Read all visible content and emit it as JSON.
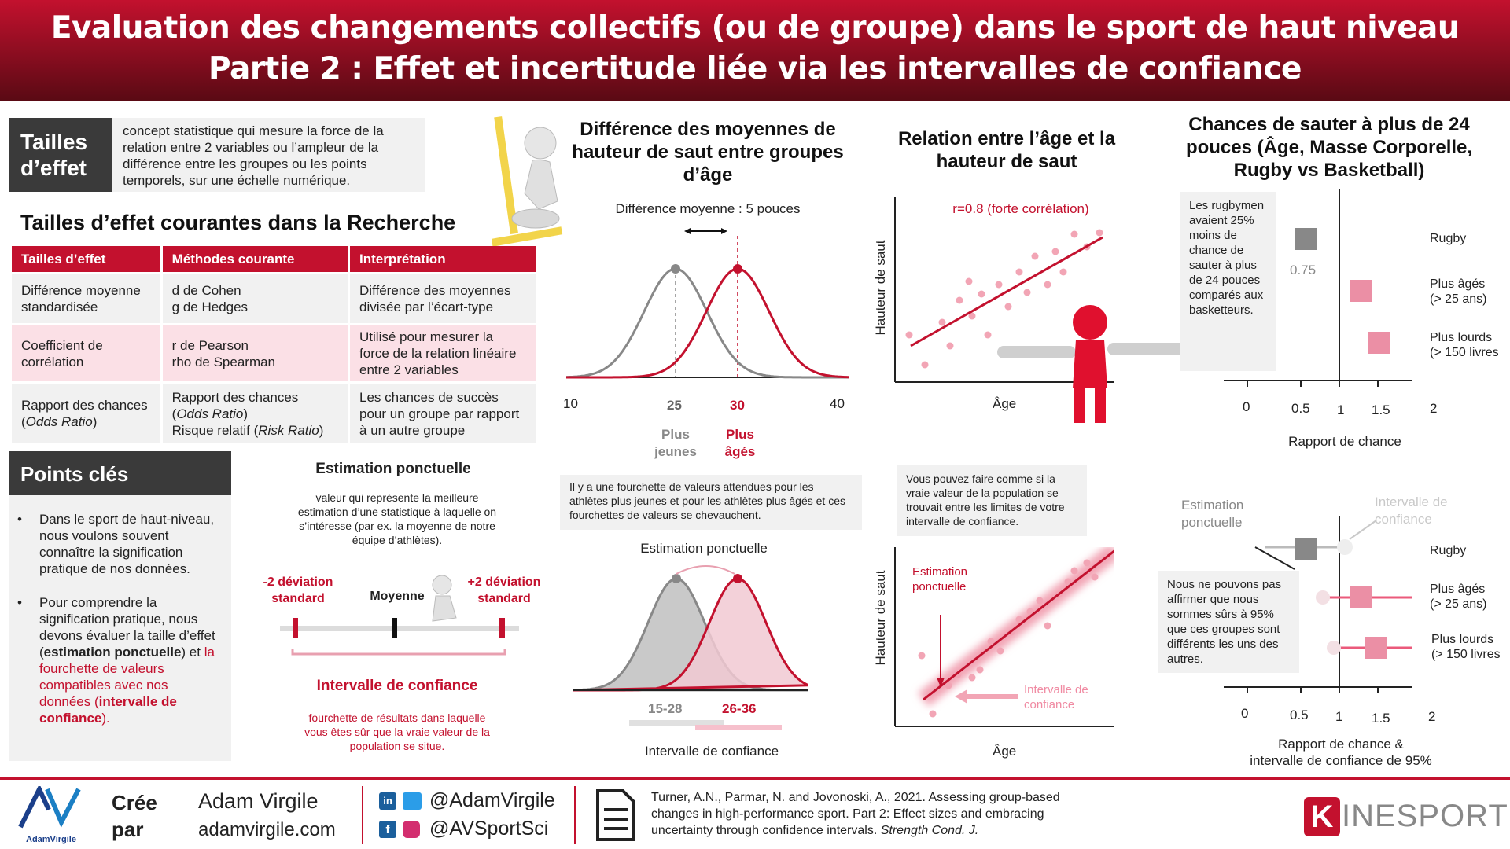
{
  "header": {
    "title_line1": "Evaluation des changements collectifs (ou de groupe) dans le sport de haut niveau",
    "title_line2": "Partie 2 : Effet et incertitude liée via les intervalles de confiance"
  },
  "effect_sizes": {
    "tag": "Tailles d’effet",
    "definition": "concept statistique qui mesure la force de la relation entre 2 variables ou l’ampleur de la différence entre les groupes ou les points temporels, sur une échelle numérique.",
    "table_title": "Tailles d’effet courantes dans la Recherche",
    "columns": [
      "Tailles d’effet",
      "Méthodes courante",
      "Interprétation"
    ],
    "rows": [
      {
        "size": "Différence moyenne standardisée",
        "methods_line1": "d de Cohen",
        "methods_line2": "g de Hedges",
        "interpretation": "Différence des moyennes divisée par l’écart-type"
      },
      {
        "size": "Coefficient de corrélation",
        "methods_line1": "r de Pearson",
        "methods_line2": "rho de Spearman",
        "interpretation": "Utilisé pour mesurer la force de la relation linéaire entre 2 variables"
      },
      {
        "size_prefix": "Rapport des chances (",
        "size_em": "Odds Ratio",
        "size_suffix": ")",
        "methods_line1": "Rapport des chances",
        "methods_line2_pre": "(",
        "methods_line2_em": "Odds Ratio",
        "methods_line2_post": ")",
        "methods_line3_pre": "Risque relatif (",
        "methods_line3_em": "Risk Ratio",
        "methods_line3_post": ")",
        "interpretation": "Les chances de succès pour un groupe par rapport à un autre groupe"
      }
    ]
  },
  "key_points": {
    "title": "Points clés",
    "point1": "Dans le sport de haut-niveau, nous voulons souvent connaître la signification pratique de nos données.",
    "point2_a": "Pour comprendre la signification pratique, nous devons évaluer la taille d’effet (",
    "point2_b": "estimation ponctuelle",
    "point2_c": ") et ",
    "point2_d": "la fourchette de valeurs compatibles avec nos données (",
    "point2_e": "intervalle de confiance",
    "point2_f": ")."
  },
  "point_estimate": {
    "title": "Estimation ponctuelle",
    "description": "valeur qui représente la meilleure estimation d’une statistique à laquelle on s’intéresse (par ex. la moyenne de notre équipe d’athlètes).",
    "minus_label": "-2 déviation standard",
    "mean_label": "Moyenne",
    "plus_label": "+2 déviation standard",
    "ci_title": "Intervalle de confiance",
    "ci_desc": "fourchette de résultats dans laquelle vous êtes sûr que la vraie valeur de la population se situe."
  },
  "mean_diff": {
    "title": "Différence des moyennes de hauteur de saut entre groupes d’âge",
    "diff_label": "Différence moyenne : 5 pouces",
    "ticks": [
      "10",
      "25",
      "30",
      "40"
    ],
    "young_label": "Plus jeunes",
    "old_label": "Plus âgés",
    "overlap_note": "Il y a une fourchette de valeurs attendues pour les athlètes plus jeunes et pour les athlètes plus âgés et ces fourchettes de valeurs se chevauchent.",
    "pe_label": "Estimation ponctuelle",
    "range_young": "15-28",
    "range_old": "26-36",
    "ci_label": "Intervalle de confiance"
  },
  "correlation": {
    "title": "Relation entre l’âge et la hauteur de saut",
    "r_label": "r=0.8 (forte corrélation)",
    "x_label": "Âge",
    "y_label": "Hauteur de saut",
    "note": "Vous pouvez faire comme si la vraie valeur de la population se trouvait entre les limites de votre intervalle de confiance.",
    "pe_label": "Estimation ponctuelle",
    "ci_label": "Intervalle de confiance",
    "x_label2": "Âge",
    "y_label2": "Hauteur de saut"
  },
  "odds": {
    "title": "Chances de sauter à plus de 24 pouces (Âge, Masse Corporelle, Rugby vs Basketball)",
    "note": "Les rugbymen avaient 25% moins de chance de sauter à plus de 24 pouces comparés aux basketteurs.",
    "value_label": "0.75",
    "rows": [
      "Rugby",
      "Plus âgés (> 25 ans)",
      "Plus lourds (> 150 livres"
    ],
    "rows_full": [
      {
        "a": "Rugby",
        "b": ""
      },
      {
        "a": "Plus âgés",
        "b": "(> 25 ans)"
      },
      {
        "a": "Plus lourds",
        "b": "(> 150 livres"
      }
    ],
    "ticks": [
      "0",
      "0.5",
      "1",
      "1.5",
      "2"
    ],
    "x_label": "Rapport de chance",
    "pe_label": "Estimation ponctuelle",
    "ci_label": "Intervalle de confiance",
    "note2": "Nous ne pouvons pas affirmer que nous sommes sûrs à 95% que ces groupes sont différents les uns des autres.",
    "x_label2_line1": "Rapport de chance &",
    "x_label2_line2": "intervalle de confiance de 95%"
  },
  "footer": {
    "logo_text": "AdamVirgile",
    "created_by_line1": "Crée",
    "created_by_line2": "par",
    "author": "Adam Virgile",
    "website": "adamvirgile.com",
    "handle1": "@AdamVirgile",
    "handle2": "@AVSportSci",
    "reference": "Turner, A.N., Parmar, N. and Jovonoski, A., 2021. Assessing group-based changes in high-performance sport. Part 2: Effect sizes and embracing uncertainty through confidence intervals.",
    "journal": "Strength Cond. J.",
    "brand_k": "K",
    "brand_rest": "INESPORT"
  },
  "colors": {
    "accent": "#c3112e",
    "pink": "#e8a0b0",
    "grey": "#888888"
  }
}
